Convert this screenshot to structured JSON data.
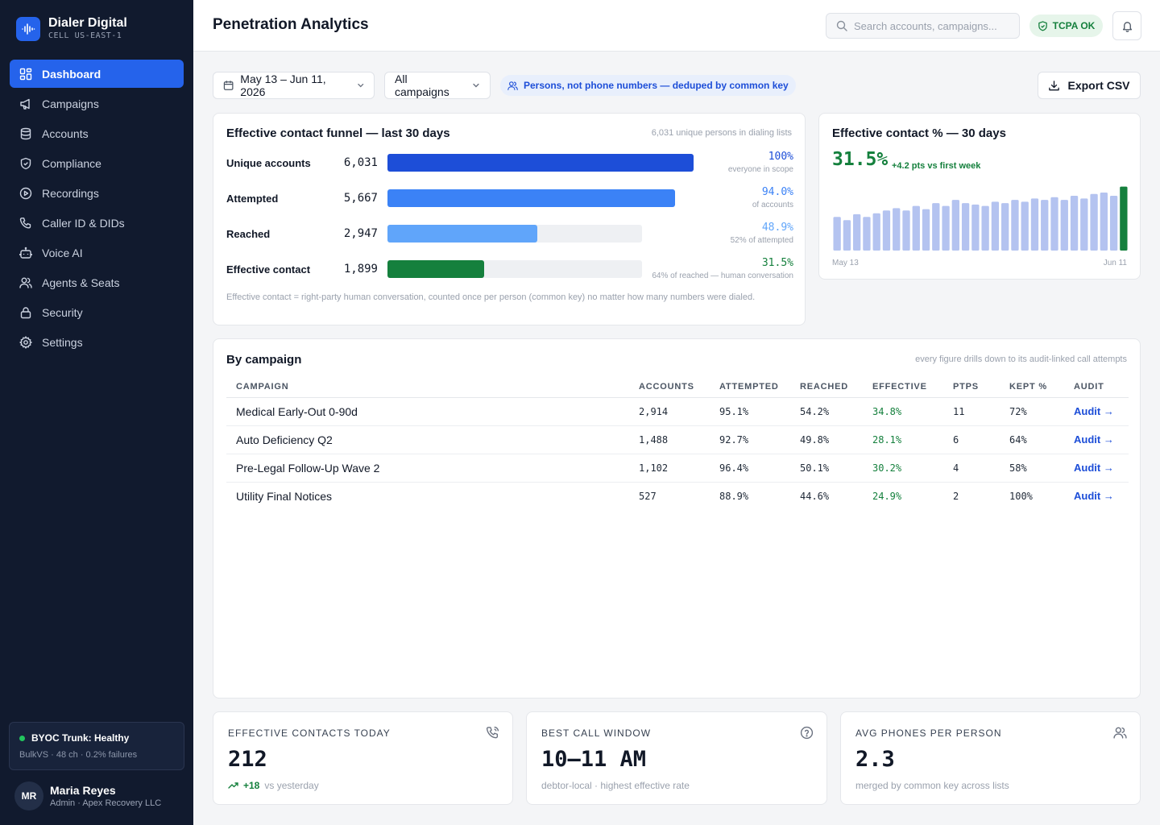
{
  "brand": {
    "name": "Dialer Digital",
    "sub": "CELL US-EAST-1"
  },
  "nav": [
    {
      "label": "Dashboard",
      "icon": "grid-icon",
      "active": true
    },
    {
      "label": "Campaigns",
      "icon": "megaphone-icon"
    },
    {
      "label": "Accounts",
      "icon": "database-icon"
    },
    {
      "label": "Compliance",
      "icon": "shield-icon"
    },
    {
      "label": "Recordings",
      "icon": "play-circle-icon"
    },
    {
      "label": "Caller ID & DIDs",
      "icon": "phone-icon"
    },
    {
      "label": "Voice AI",
      "icon": "bot-icon"
    },
    {
      "label": "Agents & Seats",
      "icon": "users-icon"
    },
    {
      "label": "Security",
      "icon": "lock-icon"
    },
    {
      "label": "Settings",
      "icon": "gear-icon"
    }
  ],
  "trunk": {
    "title": "BYOC Trunk: Healthy",
    "sub": "BulkVS · 48 ch · 0.2% failures"
  },
  "user": {
    "initials": "MR",
    "name": "Maria Reyes",
    "role": "Admin · Apex Recovery LLC"
  },
  "header": {
    "title": "Penetration Analytics",
    "search_placeholder": "Search accounts, campaigns...",
    "tcpa": "TCPA OK"
  },
  "filters": {
    "date_range": "May 13 – Jun 11, 2026",
    "campaign": "All campaigns",
    "info": "Persons, not phone numbers — deduped by common key",
    "export": "Export CSV"
  },
  "funnel": {
    "title": "Effective contact funnel — last 30 days",
    "note": "6,031 unique persons in dialing lists",
    "rows": [
      {
        "label": "Unique accounts",
        "count": "6,031",
        "pct": "100%",
        "sub": "everyone in scope",
        "fraction": 1.0,
        "color": "#1d4ed8",
        "pct_color": "#1d4ed8"
      },
      {
        "label": "Attempted",
        "count": "5,667",
        "pct": "94.0%",
        "sub": "of accounts",
        "fraction": 0.94,
        "color": "#3b82f6",
        "pct_color": "#3b82f6"
      },
      {
        "label": "Reached",
        "count": "2,947",
        "pct": "48.9%",
        "sub": "52% of attempted",
        "fraction": 0.489,
        "color": "#60a5fa",
        "pct_color": "#60a5fa"
      },
      {
        "label": "Effective contact",
        "count": "1,899",
        "pct": "31.5%",
        "sub": "64% of reached — human conversation",
        "fraction": 0.315,
        "color": "#15803d",
        "pct_color": "#15803d"
      }
    ],
    "footnote": "Effective contact = right-party human conversation, counted once per person (common key) no matter how many numbers were dialed."
  },
  "effective": {
    "title": "Effective contact % — 30 days",
    "value": "31.5%",
    "delta": "+4.2 pts vs first week",
    "start_label": "May 13",
    "end_label": "Jun 11"
  },
  "chart_data": {
    "type": "bar",
    "title": "Effective contact % — 30 days",
    "x_start": "May 13",
    "x_end": "Jun 11",
    "values": [
      27.3,
      26.6,
      27.9,
      27.3,
      28.1,
      28.7,
      29.2,
      28.7,
      29.7,
      29.0,
      30.3,
      29.7,
      31.0,
      30.3,
      30.0,
      29.7,
      30.6,
      30.3,
      31.0,
      30.6,
      31.3,
      31.0,
      31.6,
      31.0,
      31.9,
      31.3,
      32.3,
      32.6,
      31.9,
      33.9
    ],
    "highlight_last": true,
    "colors": {
      "bar": "#b4c3f0",
      "highlight": "#15803d"
    }
  },
  "campaigns": {
    "title": "By campaign",
    "note": "every figure drills down to its audit-linked call attempts",
    "columns": [
      "CAMPAIGN",
      "ACCOUNTS",
      "ATTEMPTED",
      "REACHED",
      "EFFECTIVE",
      "PTPS",
      "KEPT %",
      "AUDIT"
    ],
    "rows": [
      {
        "campaign": "Medical Early-Out 0-90d",
        "accounts": "2,914",
        "attempted": "95.1%",
        "reached": "54.2%",
        "effective": "34.8%",
        "ptps": "11",
        "kept": "72%",
        "audit": "Audit →"
      },
      {
        "campaign": "Auto Deficiency Q2",
        "accounts": "1,488",
        "attempted": "92.7%",
        "reached": "49.8%",
        "effective": "28.1%",
        "ptps": "6",
        "kept": "64%",
        "audit": "Audit →"
      },
      {
        "campaign": "Pre-Legal Follow-Up Wave 2",
        "accounts": "1,102",
        "attempted": "96.4%",
        "reached": "50.1%",
        "effective": "30.2%",
        "ptps": "4",
        "kept": "58%",
        "audit": "Audit →"
      },
      {
        "campaign": "Utility Final Notices",
        "accounts": "527",
        "attempted": "88.9%",
        "reached": "44.6%",
        "effective": "24.9%",
        "ptps": "2",
        "kept": "100%",
        "audit": "Audit →"
      }
    ]
  },
  "stats": [
    {
      "label": "EFFECTIVE CONTACTS TODAY",
      "value": "212",
      "delta": "+18",
      "sub": "vs yesterday",
      "icon": "phone-call-icon"
    },
    {
      "label": "BEST CALL WINDOW",
      "value": "10–11 AM",
      "sub": "debtor-local · highest effective rate",
      "icon": "help-circle-icon"
    },
    {
      "label": "AVG PHONES PER PERSON",
      "value": "2.3",
      "sub": "merged by common key across lists",
      "icon": "users-icon"
    }
  ],
  "colors": {
    "accent": "#2563eb",
    "sidebar": "#111a2e",
    "success": "#15803d"
  }
}
